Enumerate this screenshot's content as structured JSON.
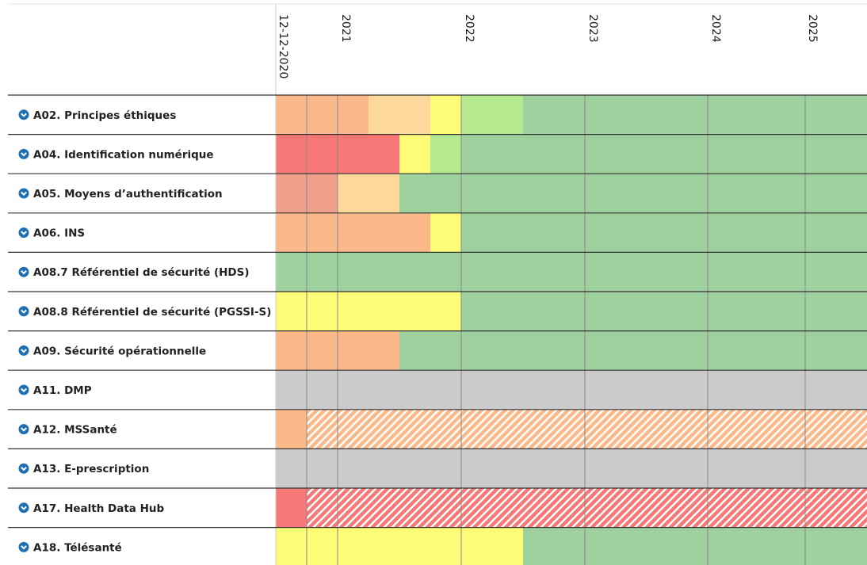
{
  "header": {
    "columns": [
      "12-12-2020",
      "2021",
      "2022",
      "2023",
      "2024",
      "2025"
    ]
  },
  "rows": [
    "A02. Principes éthiques",
    "A04. Identification numérique",
    "A05. Moyens d’authentification",
    "A06. INS",
    "A08.7 Référentiel de sécurité (HDS)",
    "A08.8 Référentiel de sécurité (PGSSI-S)",
    "A09. Sécurité opérationnelle",
    "A11. DMP",
    "A12. MSSanté",
    "A13. E-prescription",
    "A17. Health Data Hub",
    "A18. Télésanté"
  ]
}
